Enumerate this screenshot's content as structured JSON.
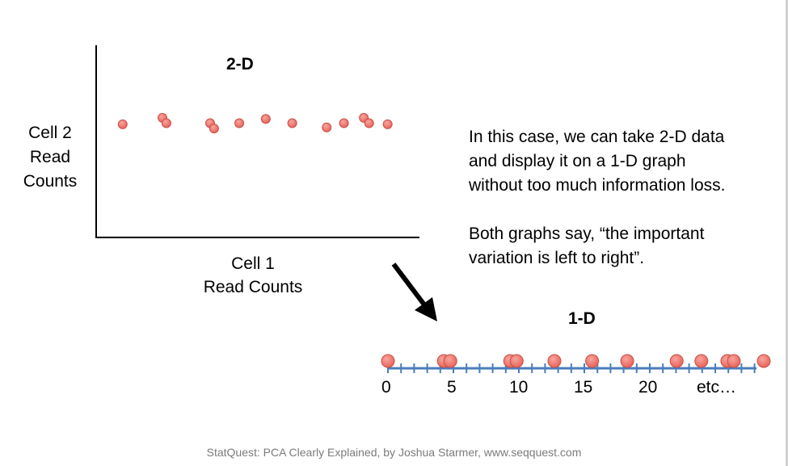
{
  "chart_data": [
    {
      "type": "scatter",
      "title": "2-D",
      "xlabel": "Cell 1 Read Counts",
      "ylabel": "Cell 2 Read Counts",
      "x": [
        1.0,
        2.5,
        2.65,
        4.3,
        4.45,
        5.4,
        6.4,
        7.4,
        8.7,
        9.35,
        10.1,
        10.3,
        11.0
      ],
      "y": [
        5.3,
        5.6,
        5.35,
        5.35,
        5.1,
        5.35,
        5.55,
        5.35,
        5.15,
        5.35,
        5.6,
        5.35,
        5.3
      ],
      "xlim": [
        0,
        12.2
      ],
      "ylim": [
        0,
        9
      ],
      "point_color": "#f07a70"
    },
    {
      "type": "scatter",
      "title": "1-D",
      "x": [
        0,
        4.3,
        4.8,
        9.4,
        9.9,
        12.8,
        15.7,
        18.4,
        22.2,
        24.1,
        26.1,
        26.6,
        28.9
      ],
      "xlim": [
        0,
        28.9
      ],
      "tick_labels": [
        "0",
        "5",
        "10",
        "15",
        "20",
        "etc…"
      ],
      "axis_color": "#4a7ebb",
      "point_color": "#f07a70"
    }
  ],
  "text": {
    "ylabel_lines": [
      "Cell 2",
      "Read",
      "Counts"
    ],
    "xlabel_lines": [
      "Cell 1",
      "Read Counts"
    ],
    "explanation": [
      "In this case, we can take 2-D data and display it on a 1-D graph without too much information loss.",
      "Both graphs say, “the important variation is left to right”."
    ],
    "footer": "StatQuest: PCA Clearly Explained, by Joshua Starmer, www.seqquest.com"
  },
  "colors": {
    "arrow": "#000000",
    "point_stroke": "#c9504a"
  }
}
